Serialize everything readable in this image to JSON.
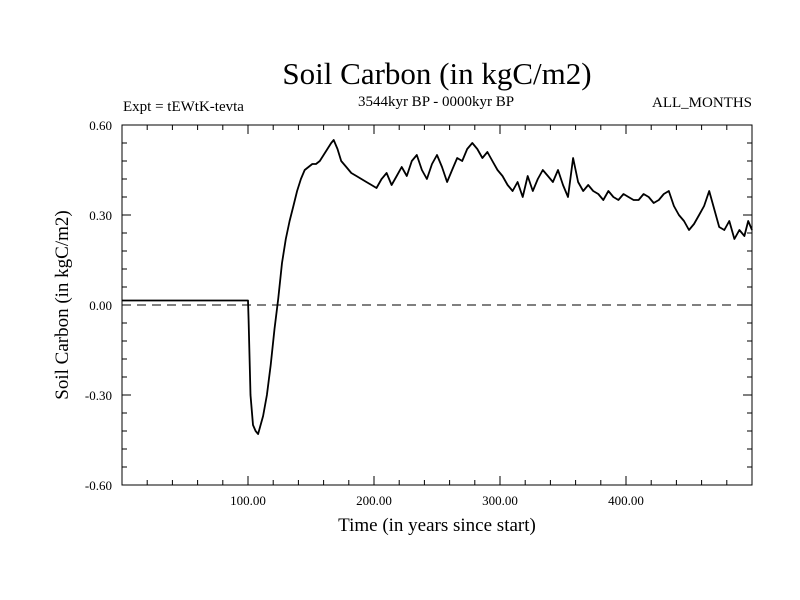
{
  "chart_data": {
    "type": "line",
    "title": "Soil Carbon (in kgC/m2)",
    "subtitle": "3544kyr BP - 0000kyr BP",
    "experiment_label": "Expt = tEWtK-tevta",
    "months_label": "ALL_MONTHS",
    "xlabel": "Time (in years since start)",
    "ylabel": "Soil Carbon (in kgC/m2)",
    "xlim": [
      0,
      500
    ],
    "ylim": [
      -0.6,
      0.6
    ],
    "x_ticks": [
      100,
      200,
      300,
      400
    ],
    "x_tick_labels": [
      "100.00",
      "200.00",
      "300.00",
      "400.00"
    ],
    "y_ticks": [
      -0.6,
      -0.3,
      0.0,
      0.3,
      0.6
    ],
    "y_tick_labels": [
      "-0.60",
      "-0.30",
      "0.00",
      "0.30",
      "0.60"
    ],
    "reference_line": {
      "y": 0.0,
      "style": "dashed"
    },
    "grid": false,
    "series": [
      {
        "name": "Soil Carbon",
        "x": [
          0,
          100,
          100.5,
          102,
          104,
          106,
          108,
          110,
          112,
          115,
          118,
          121,
          124,
          127,
          130,
          133,
          136,
          139,
          142,
          145,
          148,
          151,
          154,
          157,
          160,
          163,
          166,
          168,
          171,
          174,
          178,
          182,
          186,
          190,
          194,
          198,
          202,
          206,
          210,
          214,
          218,
          222,
          226,
          230,
          234,
          238,
          242,
          246,
          250,
          254,
          258,
          262,
          266,
          270,
          274,
          278,
          282,
          286,
          290,
          294,
          298,
          302,
          306,
          310,
          314,
          318,
          322,
          326,
          330,
          334,
          338,
          342,
          346,
          350,
          354,
          358,
          362,
          366,
          370,
          374,
          378,
          382,
          386,
          390,
          394,
          398,
          402,
          406,
          410,
          414,
          418,
          422,
          426,
          430,
          434,
          438,
          442,
          446,
          450,
          454,
          458,
          462,
          466,
          470,
          474,
          478,
          482,
          486,
          490,
          494,
          497,
          500
        ],
        "y": [
          0.015,
          0.015,
          -0.05,
          -0.3,
          -0.4,
          -0.42,
          -0.43,
          -0.4,
          -0.37,
          -0.3,
          -0.2,
          -0.08,
          0.02,
          0.14,
          0.22,
          0.28,
          0.33,
          0.38,
          0.42,
          0.45,
          0.46,
          0.47,
          0.47,
          0.48,
          0.5,
          0.52,
          0.54,
          0.55,
          0.52,
          0.48,
          0.46,
          0.44,
          0.43,
          0.42,
          0.41,
          0.4,
          0.39,
          0.42,
          0.44,
          0.4,
          0.43,
          0.46,
          0.43,
          0.48,
          0.5,
          0.45,
          0.42,
          0.47,
          0.5,
          0.46,
          0.41,
          0.45,
          0.49,
          0.48,
          0.52,
          0.54,
          0.52,
          0.49,
          0.51,
          0.48,
          0.45,
          0.43,
          0.4,
          0.38,
          0.41,
          0.36,
          0.43,
          0.38,
          0.42,
          0.45,
          0.43,
          0.41,
          0.45,
          0.4,
          0.36,
          0.49,
          0.41,
          0.38,
          0.4,
          0.38,
          0.37,
          0.35,
          0.38,
          0.36,
          0.35,
          0.37,
          0.36,
          0.35,
          0.35,
          0.37,
          0.36,
          0.34,
          0.35,
          0.37,
          0.38,
          0.33,
          0.3,
          0.28,
          0.25,
          0.27,
          0.3,
          0.33,
          0.38,
          0.32,
          0.26,
          0.25,
          0.28,
          0.22,
          0.25,
          0.23,
          0.28,
          0.25
        ]
      }
    ]
  }
}
